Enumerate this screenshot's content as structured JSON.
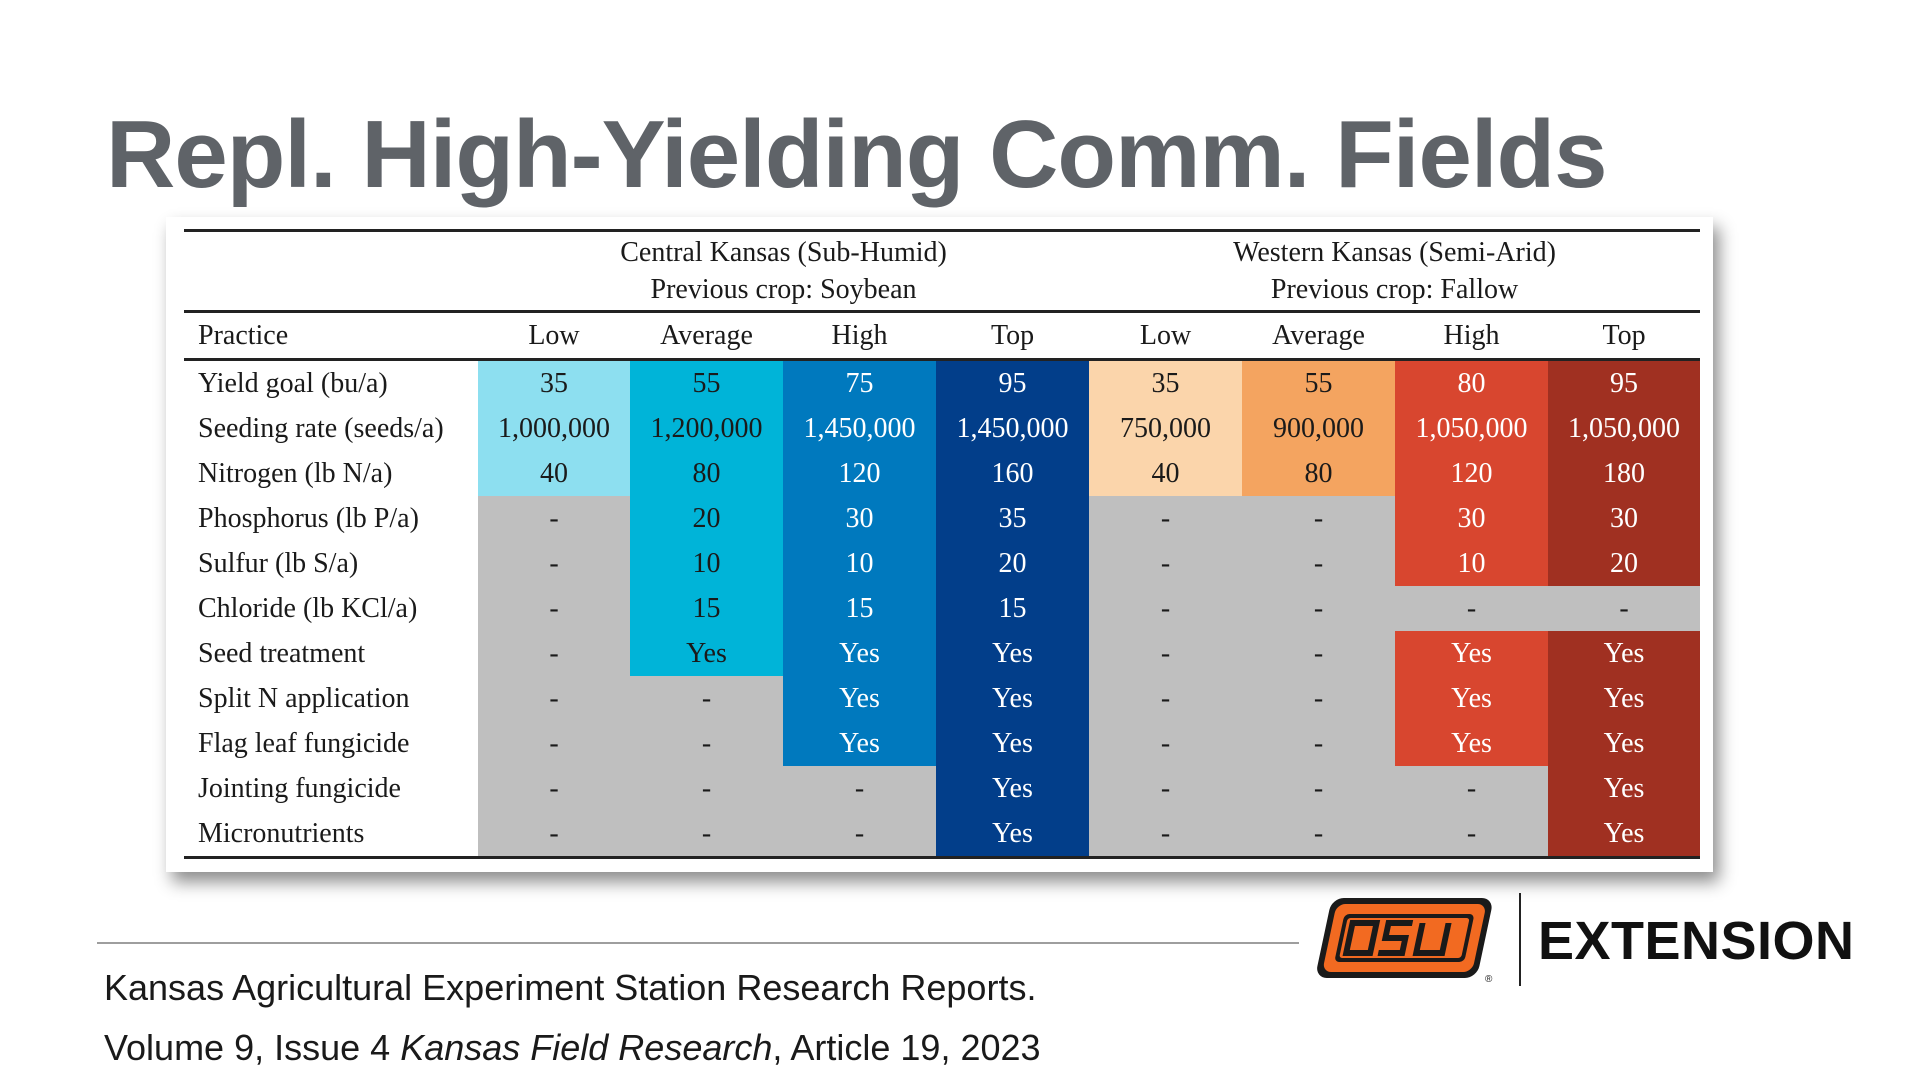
{
  "title": "Repl. High-Yielding Comm. Fields",
  "table": {
    "groups": [
      {
        "name": "Central Kansas (Sub-Humid)",
        "subtitle": "Previous crop: Soybean"
      },
      {
        "name": "Western Kansas (Semi-Arid)",
        "subtitle": "Previous crop: Fallow"
      }
    ],
    "practice_header": "Practice",
    "levels": [
      "Low",
      "Average",
      "High",
      "Top",
      "Low",
      "Average",
      "High",
      "Top"
    ],
    "rows": [
      {
        "practice": "Yield goal (bu/a)",
        "cells": [
          "35",
          "55",
          "75",
          "95",
          "35",
          "55",
          "80",
          "95"
        ]
      },
      {
        "practice": "Seeding rate (seeds/a)",
        "cells": [
          "1,000,000",
          "1,200,000",
          "1,450,000",
          "1,450,000",
          "750,000",
          "900,000",
          "1,050,000",
          "1,050,000"
        ]
      },
      {
        "practice": "Nitrogen (lb N/a)",
        "cells": [
          "40",
          "80",
          "120",
          "160",
          "40",
          "80",
          "120",
          "180"
        ]
      },
      {
        "practice": "Phosphorus (lb P/a)",
        "cells": [
          "-",
          "20",
          "30",
          "35",
          "-",
          "-",
          "30",
          "30"
        ]
      },
      {
        "practice": "Sulfur (lb S/a)",
        "cells": [
          "-",
          "10",
          "10",
          "20",
          "-",
          "-",
          "10",
          "20"
        ]
      },
      {
        "practice": "Chloride (lb KCl/a)",
        "cells": [
          "-",
          "15",
          "15",
          "15",
          "-",
          "-",
          "-",
          "-"
        ]
      },
      {
        "practice": "Seed treatment",
        "cells": [
          "-",
          "Yes",
          "Yes",
          "Yes",
          "-",
          "-",
          "Yes",
          "Yes"
        ]
      },
      {
        "practice": "Split N application",
        "cells": [
          "-",
          "-",
          "Yes",
          "Yes",
          "-",
          "-",
          "Yes",
          "Yes"
        ]
      },
      {
        "practice": "Flag leaf fungicide",
        "cells": [
          "-",
          "-",
          "Yes",
          "Yes",
          "-",
          "-",
          "Yes",
          "Yes"
        ]
      },
      {
        "practice": "Jointing fungicide",
        "cells": [
          "-",
          "-",
          "-",
          "Yes",
          "-",
          "-",
          "-",
          "Yes"
        ]
      },
      {
        "practice": "Micronutrients",
        "cells": [
          "-",
          "-",
          "-",
          "Yes",
          "-",
          "-",
          "-",
          "Yes"
        ]
      }
    ]
  },
  "citation": {
    "line1": "Kansas Agricultural Experiment Station Research Reports.",
    "line2_prefix": "Volume 9, Issue 4 ",
    "line2_journal": "Kansas Field Research",
    "line2_suffix": ", Article 19, 2023"
  },
  "logo": {
    "name": "OSU",
    "text": "EXTENSION"
  },
  "colors": {
    "title": "#5f6368",
    "gray": "#bfbfbf",
    "central_low": "#8ddff0",
    "central_average": "#00b4d8",
    "central_high": "#0079be",
    "central_top": "#023e8a",
    "western_low": "#fbd5ab",
    "western_average": "#f4a460",
    "western_high": "#d8462f",
    "western_top": "#a03021",
    "osu_orange": "#f26a21"
  }
}
